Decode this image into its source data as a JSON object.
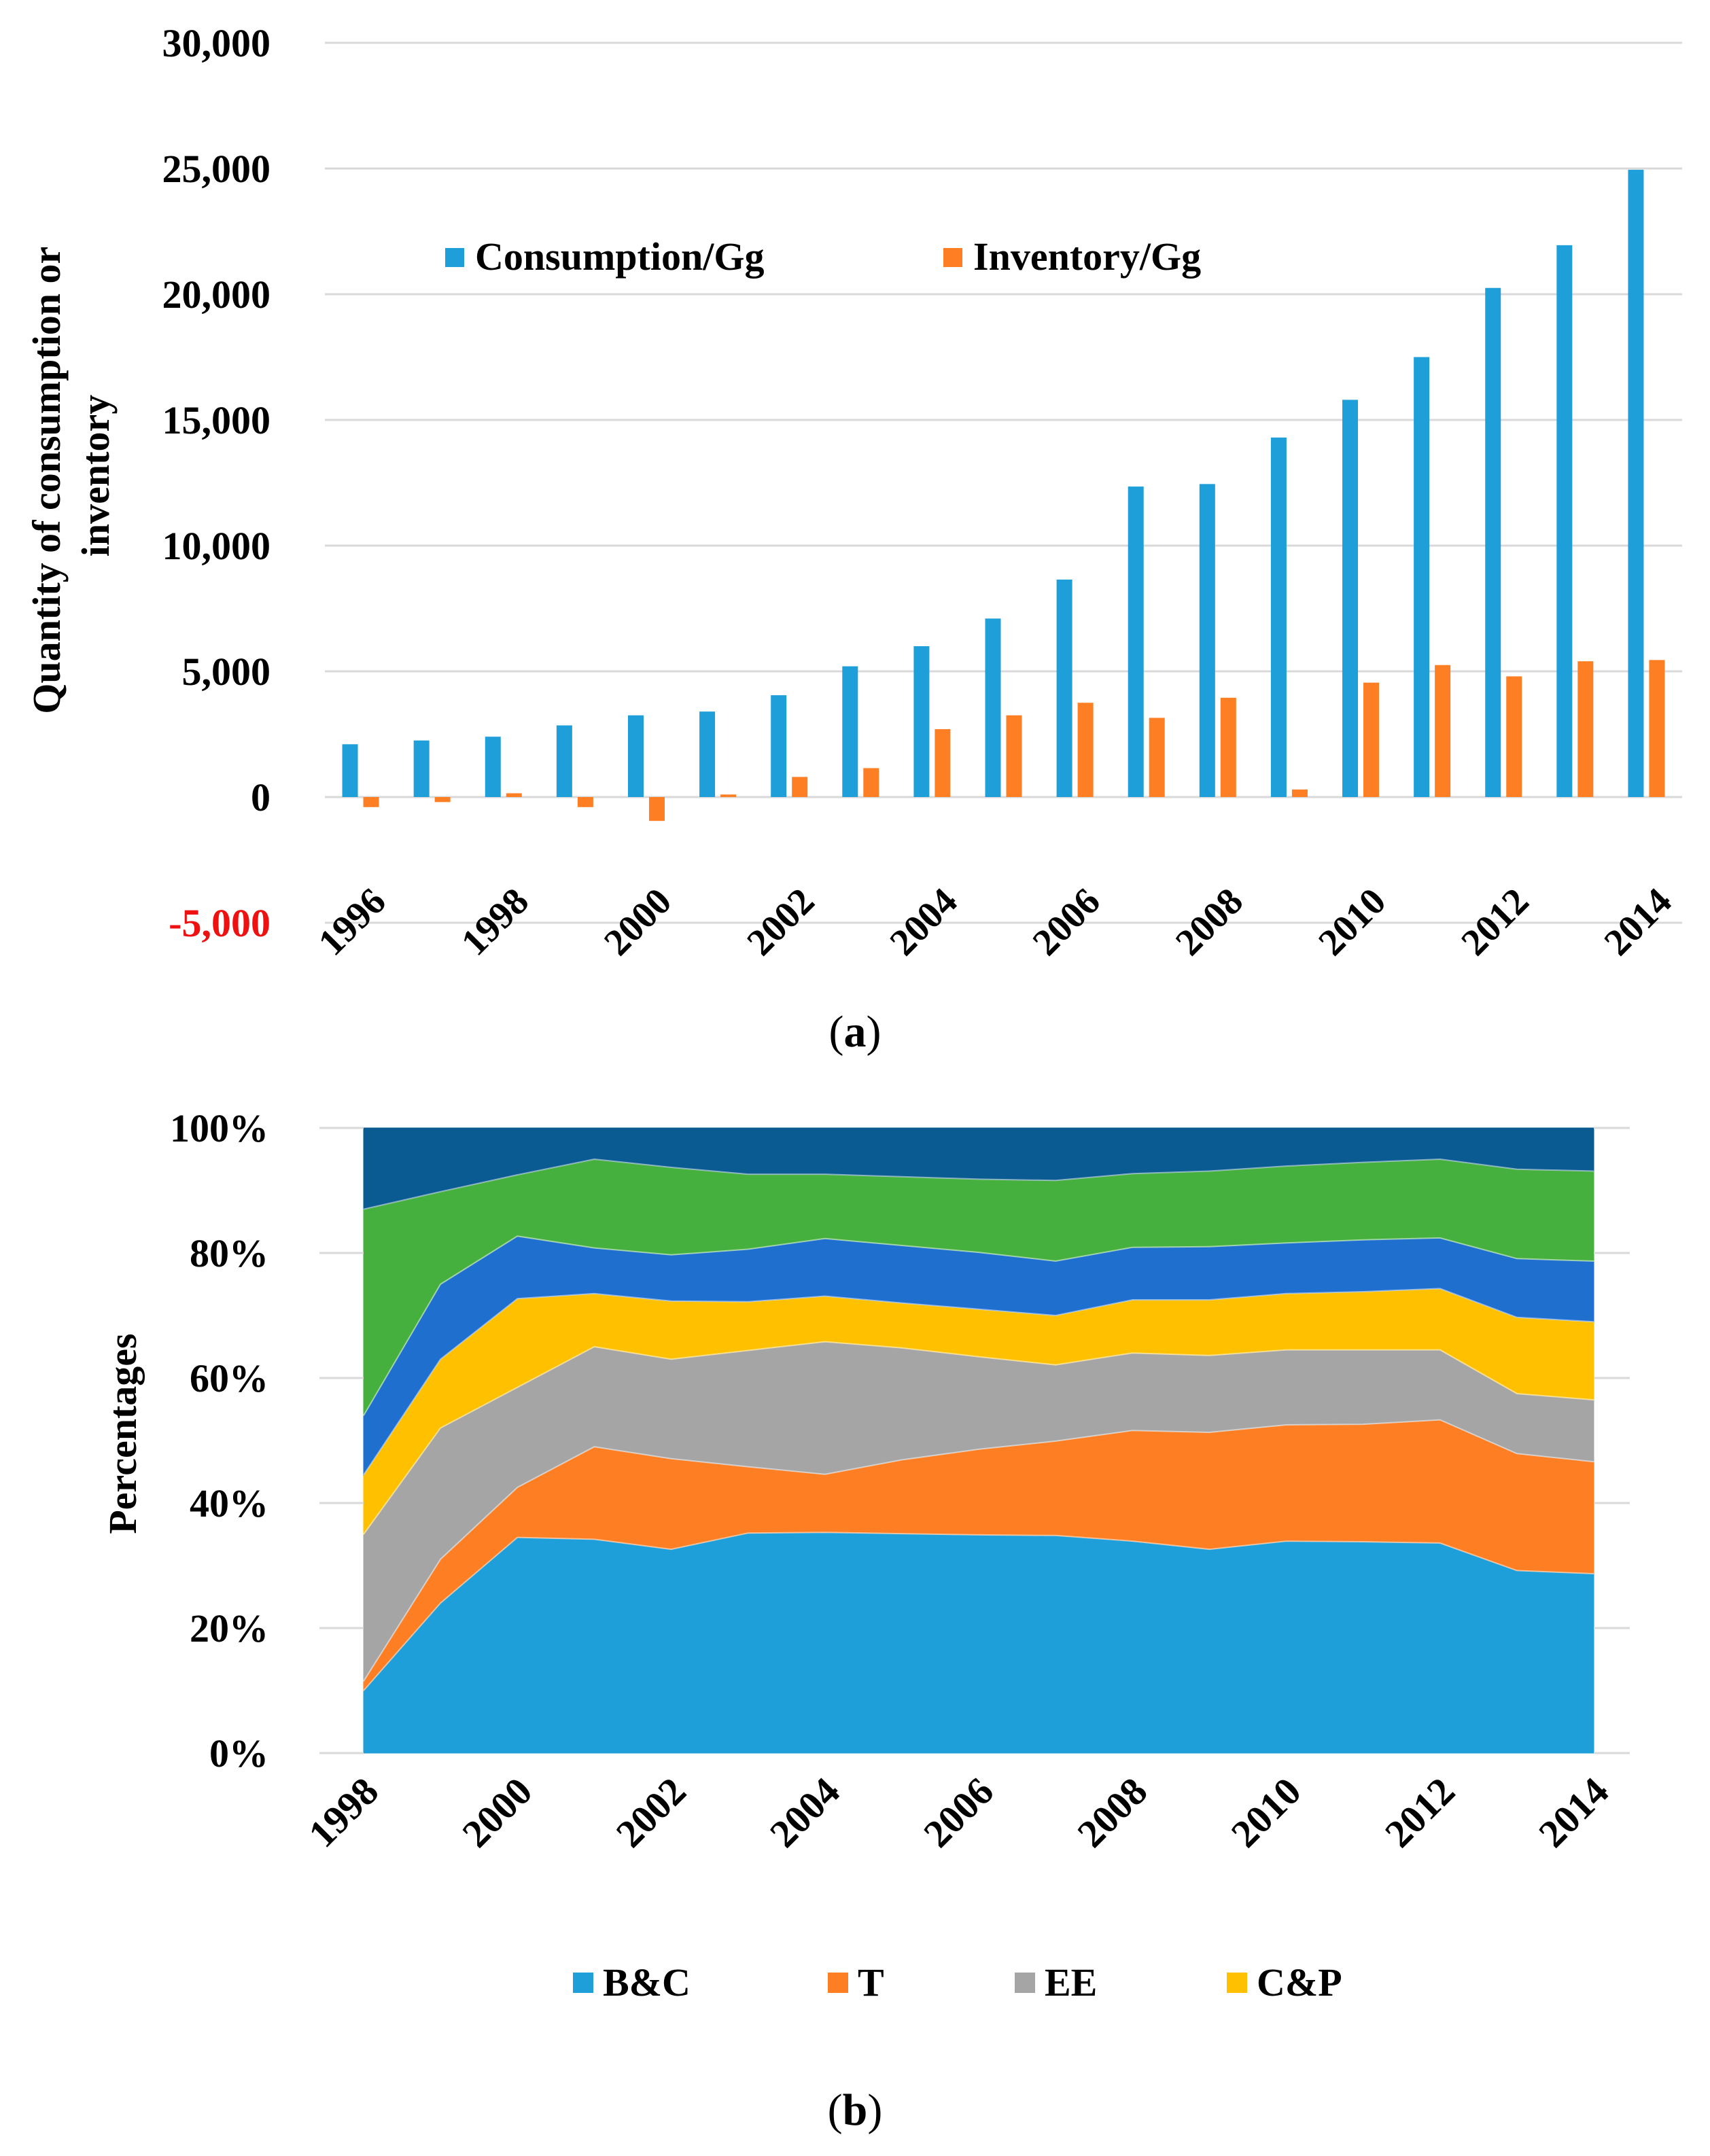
{
  "chart_data": [
    {
      "type": "bar",
      "panel_label": "a",
      "ylabel": "Quantity of consumption or inventory",
      "ylabel_lines": [
        "Quantity of consumption or",
        "inventory"
      ],
      "ylim": [
        -5000,
        30000
      ],
      "yticks": [
        {
          "value": 30000,
          "label": "30,000"
        },
        {
          "value": 25000,
          "label": "25,000"
        },
        {
          "value": 20000,
          "label": "20,000"
        },
        {
          "value": 15000,
          "label": "15,000"
        },
        {
          "value": 10000,
          "label": "10,000"
        },
        {
          "value": 5000,
          "label": "5,000"
        },
        {
          "value": 0,
          "label": "0"
        },
        {
          "value": -5000,
          "label": "-5,000",
          "color": "#ee1111"
        }
      ],
      "categories": [
        "1996",
        "1997",
        "1998",
        "1999",
        "2000",
        "2001",
        "2002",
        "2003",
        "2004",
        "2005",
        "2006",
        "2007",
        "2008",
        "2009",
        "2010",
        "2011",
        "2012",
        "2013",
        "2014"
      ],
      "xtick_labels": [
        "1996",
        "",
        "1998",
        "",
        "2000",
        "",
        "2002",
        "",
        "2004",
        "",
        "2006",
        "",
        "2008",
        "",
        "2010",
        "",
        "2012",
        "",
        "2014"
      ],
      "series": [
        {
          "name": "Consumption/Gg",
          "color": "#1f9fda",
          "values": [
            2100,
            2250,
            2400,
            2850,
            3250,
            3400,
            4050,
            5200,
            6000,
            7100,
            8650,
            12350,
            12450,
            14300,
            15800,
            17500,
            20250,
            21950,
            24950
          ]
        },
        {
          "name": "Inventory/Gg",
          "color": "#fd7e23",
          "values": [
            -400,
            -200,
            150,
            -400,
            -950,
            100,
            800,
            1150,
            2700,
            3250,
            3750,
            3150,
            3950,
            300,
            4550,
            5250,
            4800,
            5400,
            5450
          ]
        }
      ],
      "legend": "top-left inside"
    },
    {
      "type": "area",
      "panel_label": "b",
      "stacked": true,
      "ylabel": "Percentages",
      "ylim": [
        0,
        100
      ],
      "yticks": [
        {
          "value": 100,
          "label": "100%"
        },
        {
          "value": 80,
          "label": "80%"
        },
        {
          "value": 60,
          "label": "60%"
        },
        {
          "value": 40,
          "label": "40%"
        },
        {
          "value": 20,
          "label": "20%"
        },
        {
          "value": 0,
          "label": "0%"
        }
      ],
      "categories": [
        "1998",
        "1999",
        "2000",
        "2001",
        "2002",
        "2003",
        "2004",
        "2005",
        "2006",
        "2007",
        "2008",
        "2009",
        "2010",
        "2011",
        "2012",
        "2013",
        "2014"
      ],
      "xtick_labels": [
        "1998",
        "",
        "2000",
        "",
        "2002",
        "",
        "2004",
        "",
        "2006",
        "",
        "2008",
        "",
        "2010",
        "",
        "2012",
        "",
        "2014"
      ],
      "cumulative_tops": [
        {
          "name": "B&C",
          "color": "#1f9fda",
          "values": [
            10,
            24,
            34.5,
            34.2,
            32.6,
            35.2,
            35.3,
            35.1,
            34.9,
            34.8,
            33.9,
            32.6,
            33.9,
            33.8,
            33.6,
            29.2,
            28.7
          ]
        },
        {
          "name": "T",
          "color": "#fd7e23",
          "values": [
            11.5,
            31,
            42.5,
            49,
            47.1,
            45.8,
            44.6,
            46.9,
            48.6,
            49.9,
            51.6,
            51.3,
            52.5,
            52.6,
            53.3,
            47.9,
            46.6
          ]
        },
        {
          "name": "EE",
          "color": "#a5a5a5",
          "values": [
            35,
            52,
            58.5,
            65,
            63,
            64.4,
            65.8,
            64.8,
            63.4,
            62.1,
            64,
            63.6,
            64.5,
            64.5,
            64.5,
            57.5,
            56.5
          ]
        },
        {
          "name": "C&P",
          "color": "#ffc000",
          "values": [
            44.5,
            63,
            72.7,
            73.5,
            72.3,
            72.2,
            73.1,
            72,
            71,
            70,
            72.5,
            72.5,
            73.5,
            73.8,
            74.3,
            69.7,
            69
          ]
        },
        {
          "name": "",
          "color": "#1f6fcf",
          "values": [
            54,
            75,
            82.7,
            80.8,
            79.7,
            80.6,
            82.3,
            81.2,
            80.1,
            78.7,
            80.9,
            81,
            81.6,
            82.1,
            82.4,
            79.1,
            78.7
          ]
        },
        {
          "name": "",
          "color": "#45b03d",
          "values": [
            87,
            89.8,
            92.5,
            95,
            93.7,
            92.6,
            92.6,
            92.2,
            91.8,
            91.6,
            92.7,
            93.1,
            93.9,
            94.5,
            95,
            93.4,
            93.1
          ]
        },
        {
          "name": "",
          "color": "#0a5b91",
          "values": [
            100,
            100,
            100,
            100,
            100,
            100,
            100,
            100,
            100,
            100,
            100,
            100,
            100,
            100,
            100,
            100,
            100
          ]
        }
      ],
      "legend_entries": [
        "B&C",
        "T",
        "EE",
        "C&P"
      ],
      "legend": "bottom"
    }
  ]
}
